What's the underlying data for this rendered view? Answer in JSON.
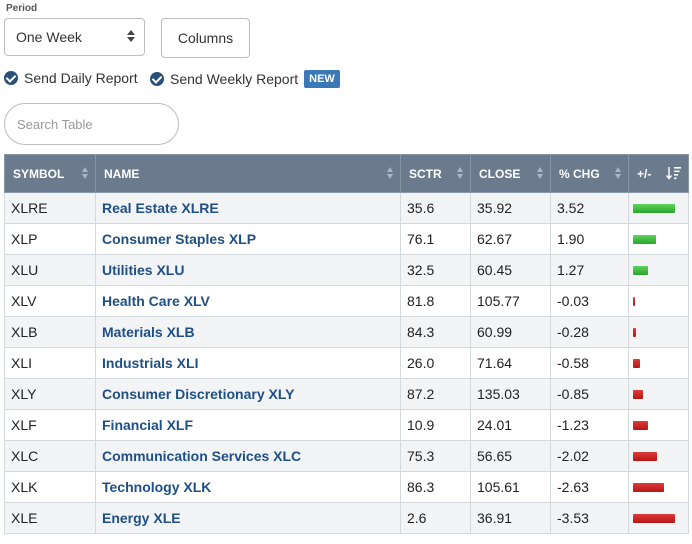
{
  "period": {
    "label": "Period",
    "selected": "One Week"
  },
  "columns_button": "Columns",
  "reports": {
    "daily": "Send Daily Report",
    "weekly": "Send Weekly Report",
    "new_badge": "NEW"
  },
  "search": {
    "placeholder": "Search Table"
  },
  "table": {
    "headers": [
      "SYMBOL",
      "NAME",
      "SCTR",
      "CLOSE",
      "% CHG",
      "+/-"
    ],
    "rows": [
      {
        "symbol": "XLRE",
        "name": "Real Estate XLRE",
        "sctr": "35.6",
        "close": "35.92",
        "chg": "3.52"
      },
      {
        "symbol": "XLP",
        "name": "Consumer Staples XLP",
        "sctr": "76.1",
        "close": "62.67",
        "chg": "1.90"
      },
      {
        "symbol": "XLU",
        "name": "Utilities XLU",
        "sctr": "32.5",
        "close": "60.45",
        "chg": "1.27"
      },
      {
        "symbol": "XLV",
        "name": "Health Care XLV",
        "sctr": "81.8",
        "close": "105.77",
        "chg": "-0.03"
      },
      {
        "symbol": "XLB",
        "name": "Materials XLB",
        "sctr": "84.3",
        "close": "60.99",
        "chg": "-0.28"
      },
      {
        "symbol": "XLI",
        "name": "Industrials XLI",
        "sctr": "26.0",
        "close": "71.64",
        "chg": "-0.58"
      },
      {
        "symbol": "XLY",
        "name": "Consumer Discretionary XLY",
        "sctr": "87.2",
        "close": "135.03",
        "chg": "-0.85"
      },
      {
        "symbol": "XLF",
        "name": "Financial XLF",
        "sctr": "10.9",
        "close": "24.01",
        "chg": "-1.23"
      },
      {
        "symbol": "XLC",
        "name": "Communication Services XLC",
        "sctr": "75.3",
        "close": "56.65",
        "chg": "-2.02"
      },
      {
        "symbol": "XLK",
        "name": "Technology XLK",
        "sctr": "86.3",
        "close": "105.61",
        "chg": "-2.63"
      },
      {
        "symbol": "XLE",
        "name": "Energy XLE",
        "sctr": "2.6",
        "close": "36.91",
        "chg": "-3.53"
      }
    ]
  },
  "colors": {
    "positive": "#2aa52a",
    "negative": "#b81616",
    "header_bg": "#6b7b8d",
    "link": "#1f4f86"
  },
  "icons": [
    "check-circle-icon",
    "sort-icon",
    "sort-desc-icon",
    "select-caret-icon"
  ]
}
